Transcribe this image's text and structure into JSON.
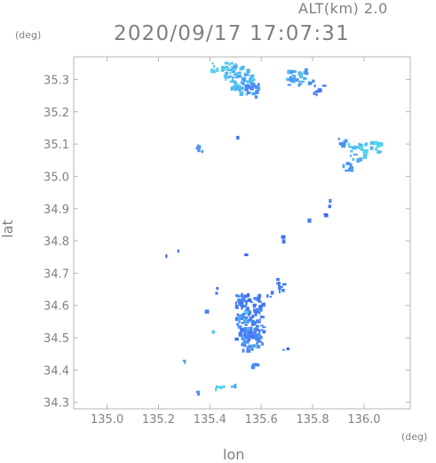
{
  "header": {
    "altitude": "ALT(km) 2.0",
    "datetime": "2020/09/17 17:07:31"
  },
  "chart_data": {
    "type": "heatmap",
    "title": "2020/09/17 17:07:31",
    "subtitle": "ALT(km) 2.0",
    "xlabel": "lon",
    "ylabel": "lat",
    "xunit": "(deg)",
    "yunit": "(deg)",
    "xlim": [
      134.87,
      136.18
    ],
    "ylim": [
      34.28,
      35.37
    ],
    "xticks": [
      135.0,
      135.2,
      135.4,
      135.6,
      135.8,
      136.0
    ],
    "xtick_labels": [
      "135.0",
      "135.2",
      "135.4",
      "135.6",
      "135.8",
      "136.0"
    ],
    "yticks": [
      34.3,
      34.4,
      34.5,
      34.6,
      34.7,
      34.8,
      34.9,
      35.0,
      35.1,
      35.2,
      35.3
    ],
    "ytick_labels": [
      "34.3",
      "34.4",
      "34.5",
      "34.6",
      "34.7",
      "34.8",
      "34.9",
      "35.0",
      "35.1",
      "35.2",
      "35.3"
    ],
    "grid": false,
    "colors": {
      "low": "#3a5ff0",
      "mid": "#4a8cf5",
      "high": "#54d7ee",
      "axis": "#b4b4b4"
    },
    "echo_cells": [
      {
        "lon": 135.52,
        "lat": 35.3,
        "w": 0.09,
        "h": 0.09,
        "intensity": 0.8
      },
      {
        "lon": 135.47,
        "lat": 35.33,
        "w": 0.06,
        "h": 0.05,
        "intensity": 0.9
      },
      {
        "lon": 135.41,
        "lat": 35.34,
        "w": 0.03,
        "h": 0.03,
        "intensity": 1.0
      },
      {
        "lon": 135.56,
        "lat": 35.27,
        "w": 0.05,
        "h": 0.04,
        "intensity": 0.5
      },
      {
        "lon": 135.73,
        "lat": 35.31,
        "w": 0.08,
        "h": 0.05,
        "intensity": 0.7
      },
      {
        "lon": 135.79,
        "lat": 35.3,
        "w": 0.02,
        "h": 0.02,
        "intensity": 0.4
      },
      {
        "lon": 135.82,
        "lat": 35.27,
        "w": 0.04,
        "h": 0.03,
        "intensity": 0.3
      },
      {
        "lon": 135.97,
        "lat": 35.08,
        "w": 0.07,
        "h": 0.05,
        "intensity": 0.85
      },
      {
        "lon": 136.04,
        "lat": 35.09,
        "w": 0.04,
        "h": 0.04,
        "intensity": 0.95
      },
      {
        "lon": 135.93,
        "lat": 35.03,
        "w": 0.04,
        "h": 0.03,
        "intensity": 0.7
      },
      {
        "lon": 135.91,
        "lat": 35.11,
        "w": 0.03,
        "h": 0.03,
        "intensity": 0.5
      },
      {
        "lon": 135.36,
        "lat": 35.09,
        "w": 0.03,
        "h": 0.02,
        "intensity": 0.5
      },
      {
        "lon": 135.5,
        "lat": 35.13,
        "w": 0.01,
        "h": 0.01,
        "intensity": 0.2
      },
      {
        "lon": 135.86,
        "lat": 34.92,
        "w": 0.01,
        "h": 0.02,
        "intensity": 0.3
      },
      {
        "lon": 135.84,
        "lat": 34.89,
        "w": 0.02,
        "h": 0.02,
        "intensity": 0.2
      },
      {
        "lon": 135.68,
        "lat": 34.81,
        "w": 0.01,
        "h": 0.02,
        "intensity": 0.2
      },
      {
        "lon": 135.78,
        "lat": 34.87,
        "w": 0.01,
        "h": 0.01,
        "intensity": 0.2
      },
      {
        "lon": 135.23,
        "lat": 34.76,
        "w": 0.01,
        "h": 0.01,
        "intensity": 0.3
      },
      {
        "lon": 135.27,
        "lat": 34.77,
        "w": 0.01,
        "h": 0.01,
        "intensity": 0.3
      },
      {
        "lon": 135.53,
        "lat": 34.76,
        "w": 0.01,
        "h": 0.01,
        "intensity": 0.2
      },
      {
        "lon": 135.55,
        "lat": 34.57,
        "w": 0.11,
        "h": 0.14,
        "intensity": 0.35
      },
      {
        "lon": 135.56,
        "lat": 34.5,
        "w": 0.08,
        "h": 0.07,
        "intensity": 0.5
      },
      {
        "lon": 135.52,
        "lat": 34.57,
        "w": 0.03,
        "h": 0.03,
        "intensity": 0.8
      },
      {
        "lon": 135.67,
        "lat": 34.67,
        "w": 0.03,
        "h": 0.04,
        "intensity": 0.3
      },
      {
        "lon": 135.63,
        "lat": 34.64,
        "w": 0.02,
        "h": 0.02,
        "intensity": 0.3
      },
      {
        "lon": 135.42,
        "lat": 34.65,
        "w": 0.01,
        "h": 0.02,
        "intensity": 0.3
      },
      {
        "lon": 135.38,
        "lat": 34.59,
        "w": 0.01,
        "h": 0.01,
        "intensity": 0.3
      },
      {
        "lon": 135.41,
        "lat": 34.52,
        "w": 0.01,
        "h": 0.01,
        "intensity": 0.8
      },
      {
        "lon": 135.69,
        "lat": 34.47,
        "w": 0.02,
        "h": 0.01,
        "intensity": 0.3
      },
      {
        "lon": 135.56,
        "lat": 34.42,
        "w": 0.05,
        "h": 0.01,
        "intensity": 0.4
      },
      {
        "lon": 135.29,
        "lat": 34.43,
        "w": 0.02,
        "h": 0.01,
        "intensity": 0.6
      },
      {
        "lon": 135.43,
        "lat": 34.35,
        "w": 0.07,
        "h": 0.01,
        "intensity": 0.9
      },
      {
        "lon": 135.49,
        "lat": 34.356,
        "w": 0.04,
        "h": 0.01,
        "intensity": 0.7
      },
      {
        "lon": 135.35,
        "lat": 34.335,
        "w": 0.02,
        "h": 0.01,
        "intensity": 0.6
      }
    ]
  }
}
